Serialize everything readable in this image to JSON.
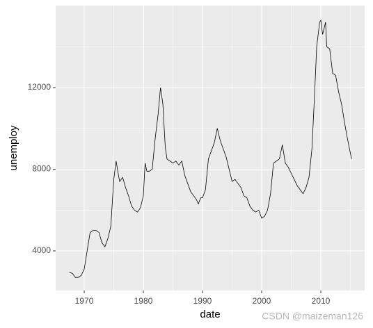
{
  "chart_data": {
    "type": "line",
    "x_label": "date",
    "y_label": "unemploy",
    "x": [
      1967.5,
      1968,
      1968.5,
      1969,
      1969.5,
      1970,
      1970.5,
      1971,
      1971.5,
      1972,
      1972.5,
      1973,
      1973.5,
      1974,
      1974.5,
      1975,
      1975.4,
      1975.8,
      1976,
      1976.5,
      1977,
      1977.5,
      1978,
      1978.5,
      1979,
      1979.5,
      1980,
      1980.3,
      1980.6,
      1981,
      1981.5,
      1982,
      1982.5,
      1982.9,
      1983.3,
      1983.7,
      1984,
      1984.5,
      1985,
      1985.5,
      1986,
      1986.5,
      1987,
      1987.5,
      1988,
      1988.5,
      1989,
      1989.3,
      1989.7,
      1990,
      1990.5,
      1991,
      1991.5,
      1992,
      1992.5,
      1993,
      1993.5,
      1994,
      1994.5,
      1995,
      1995.5,
      1996,
      1996.5,
      1997,
      1997.5,
      1998,
      1998.5,
      1999,
      1999.5,
      2000,
      2000.5,
      2001,
      2001.5,
      2002,
      2002.5,
      2003,
      2003.5,
      2004,
      2004.5,
      2005,
      2005.5,
      2006,
      2006.5,
      2007,
      2007.5,
      2008,
      2008.5,
      2009,
      2009.3,
      2009.8,
      2010,
      2010.3,
      2010.8,
      2011,
      2011.5,
      2012,
      2012.5,
      2013,
      2013.5,
      2014,
      2014.5,
      2015.2
    ],
    "series": [
      {
        "color": "#000000",
        "values": [
          2944,
          2900,
          2700,
          2700,
          2800,
          3100,
          4000,
          4900,
          5000,
          5000,
          4900,
          4400,
          4200,
          4600,
          5200,
          7500,
          8400,
          7700,
          7400,
          7600,
          7100,
          6700,
          6200,
          6000,
          5900,
          6100,
          6700,
          8300,
          7900,
          7900,
          8000,
          9500,
          10700,
          12000,
          11200,
          9100,
          8500,
          8400,
          8300,
          8400,
          8200,
          8400,
          7700,
          7300,
          6900,
          6700,
          6500,
          6300,
          6600,
          6600,
          7000,
          8500,
          8900,
          9300,
          10000,
          9400,
          9000,
          8600,
          8000,
          7400,
          7500,
          7300,
          7100,
          6700,
          6600,
          6200,
          6000,
          5900,
          6000,
          5600,
          5700,
          6000,
          6800,
          8300,
          8400,
          8500,
          9200,
          8300,
          8100,
          7800,
          7500,
          7200,
          7000,
          6800,
          7100,
          7600,
          9000,
          12000,
          14000,
          15200,
          15300,
          14600,
          15200,
          14000,
          13900,
          12700,
          12600,
          11800,
          11200,
          10300,
          9500,
          8500
        ]
      }
    ],
    "xlim": [
      1965.18,
      2017.41
    ],
    "xticks": [
      1970,
      1980,
      1990,
      2000,
      2010
    ],
    "ylim": [
      2060,
      16017
    ],
    "yticks": [
      4000,
      8000,
      12000
    ],
    "x_minor_grid": [
      1965,
      1975,
      1985,
      1995,
      2005,
      2015
    ],
    "y_minor_grid": [
      6000,
      10000,
      14000
    ],
    "grid": true,
    "watermark": "CSDN @maizeman126"
  }
}
